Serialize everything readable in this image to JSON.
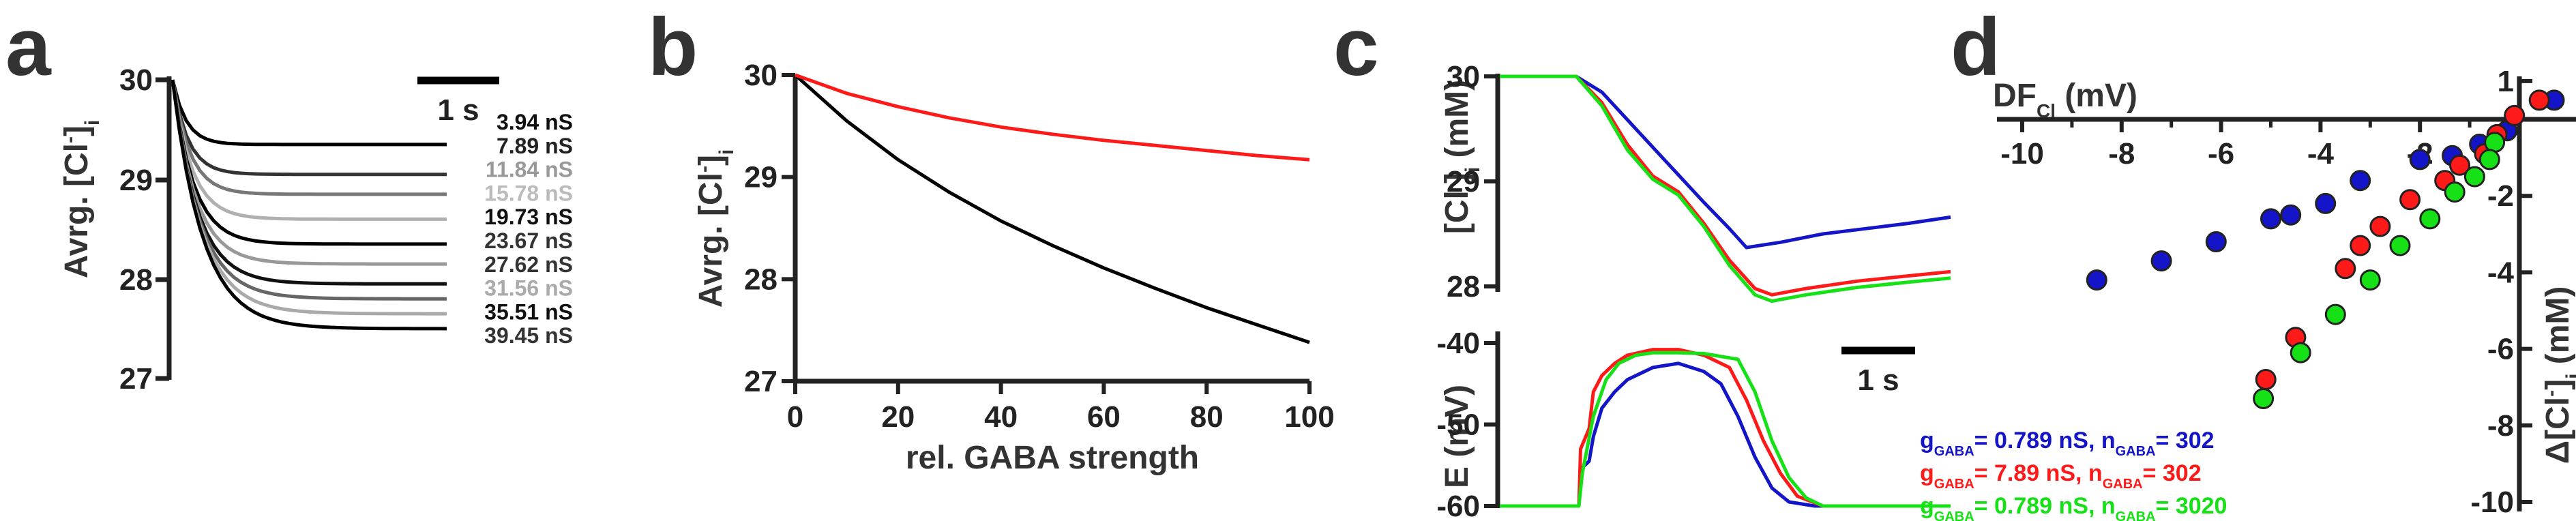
{
  "colors": {
    "blue": "#1414c8",
    "red": "#ff1a1a",
    "green": "#16e016",
    "black": "#000000",
    "dark": "#333333"
  },
  "panels": {
    "a": "a",
    "b": "b",
    "c": "c",
    "d": "d"
  },
  "chart_data": [
    {
      "panel": "a",
      "type": "line",
      "title": "",
      "xlabel": "",
      "ylabel": "Avrg. [Cl⁻]ᵢ",
      "ylabel_main": "Avrg. [Cl",
      "ylabel_sup": "-",
      "ylabel_close": "]",
      "ylabel_sub": "i",
      "ylim": [
        27,
        30
      ],
      "yticks": [
        "27",
        "28",
        "29",
        "30"
      ],
      "scalebar_label": "1 s",
      "time_s": [
        0,
        6.5
      ],
      "series": [
        {
          "name": "3.94 nS",
          "final": 29.35,
          "color": "#000000"
        },
        {
          "name": "7.89 nS",
          "final": 29.05,
          "color": "#333333"
        },
        {
          "name": "11.84 nS",
          "final": 28.85,
          "color": "#777777"
        },
        {
          "name": "15.78 nS",
          "final": 28.6,
          "color": "#b0b0b0"
        },
        {
          "name": "19.73 nS",
          "final": 28.35,
          "color": "#000000"
        },
        {
          "name": "23.67 nS",
          "final": 28.15,
          "color": "#999999"
        },
        {
          "name": "27.62 nS",
          "final": 27.95,
          "color": "#111111"
        },
        {
          "name": "31.56 nS",
          "final": 27.8,
          "color": "#666666"
        },
        {
          "name": "35.51 nS",
          "final": 27.65,
          "color": "#aaaaaa"
        },
        {
          "name": "39.45 nS",
          "final": 27.5,
          "color": "#000000"
        }
      ],
      "legend_colors": [
        "#111111",
        "#222222",
        "#999999",
        "#bbbbbb",
        "#111111",
        "#333333",
        "#333333",
        "#aaaaaa",
        "#111111",
        "#333333"
      ]
    },
    {
      "panel": "b",
      "type": "line",
      "title": "",
      "xlabel": "rel. GABA strength",
      "ylabel": "Avrg. [Cl⁻]ᵢ",
      "ylabel_main": "Avrg. [Cl",
      "ylabel_sup": "-",
      "ylabel_close": "]",
      "ylabel_sub": "i",
      "xlim": [
        0,
        100
      ],
      "ylim": [
        27,
        30
      ],
      "xticks": [
        "0",
        "20",
        "40",
        "60",
        "80",
        "100"
      ],
      "yticks": [
        "27",
        "28",
        "29",
        "30"
      ],
      "series": [
        {
          "name": "black",
          "color": "#000000",
          "x": [
            0,
            10,
            20,
            30,
            40,
            50,
            60,
            70,
            80,
            90,
            100
          ],
          "y": [
            30.0,
            29.55,
            29.17,
            28.85,
            28.57,
            28.33,
            28.11,
            27.91,
            27.72,
            27.55,
            27.38
          ]
        },
        {
          "name": "red",
          "color": "#ff1a1a",
          "x": [
            0,
            10,
            20,
            30,
            40,
            50,
            60,
            70,
            80,
            90,
            100
          ],
          "y": [
            30.0,
            29.82,
            29.69,
            29.58,
            29.49,
            29.42,
            29.36,
            29.31,
            29.26,
            29.21,
            29.17
          ]
        }
      ]
    },
    {
      "panel": "c-top",
      "type": "line",
      "title": "",
      "xlabel": "",
      "ylabel": "[Cl⁻]ᵢ (mM)",
      "ylabel_main": "[Cl",
      "ylabel_sup": "-",
      "ylabel_close": "]",
      "ylabel_sub": "i",
      "ylabel_unit": " (mM)",
      "xlim": [
        0,
        5.3
      ],
      "ylim": [
        28,
        30
      ],
      "yticks": [
        "28",
        "29",
        "30"
      ],
      "series": [
        {
          "name": "blue",
          "color": "#1414c8",
          "x": [
            0,
            0.9,
            1.2,
            1.6,
            2.0,
            2.4,
            2.7,
            2.9,
            3.3,
            3.8,
            4.3,
            4.8,
            5.3
          ],
          "y": [
            30.0,
            30.0,
            29.85,
            29.5,
            29.15,
            28.8,
            28.55,
            28.37,
            28.42,
            28.5,
            28.55,
            28.6,
            28.66
          ]
        },
        {
          "name": "red",
          "color": "#ff1a1a",
          "x": [
            0,
            0.9,
            1.2,
            1.5,
            1.8,
            2.1,
            2.4,
            2.7,
            3.0,
            3.2,
            3.6,
            4.2,
            4.8,
            5.3
          ],
          "y": [
            30.0,
            30.0,
            29.75,
            29.35,
            29.05,
            28.9,
            28.6,
            28.25,
            27.98,
            27.92,
            27.98,
            28.05,
            28.1,
            28.14
          ]
        },
        {
          "name": "green",
          "color": "#16e016",
          "x": [
            0,
            0.9,
            1.2,
            1.5,
            1.8,
            2.1,
            2.4,
            2.7,
            3.0,
            3.2,
            3.6,
            4.2,
            4.8,
            5.3
          ],
          "y": [
            30.0,
            30.0,
            29.72,
            29.3,
            29.02,
            28.87,
            28.57,
            28.2,
            27.92,
            27.86,
            27.92,
            27.99,
            28.04,
            28.08
          ]
        }
      ]
    },
    {
      "panel": "c-bottom",
      "type": "line",
      "title": "",
      "xlabel": "",
      "ylabel": "E (mV)",
      "xlim": [
        0,
        5.3
      ],
      "ylim": [
        -60,
        -40
      ],
      "yticks": [
        "-60",
        "-50",
        "-40"
      ],
      "scalebar_label": "1 s",
      "series": [
        {
          "name": "blue",
          "color": "#1414c8",
          "x": [
            0,
            0.93,
            0.95,
            1.05,
            1.1,
            1.2,
            1.35,
            1.5,
            1.8,
            2.1,
            2.4,
            2.6,
            2.8,
            3.0,
            3.2,
            3.4,
            3.7,
            5.3
          ],
          "y": [
            -60,
            -60,
            -55.5,
            -54.5,
            -51.5,
            -48,
            -46,
            -44.5,
            -43,
            -42.5,
            -43.5,
            -45,
            -49,
            -54,
            -57.8,
            -59.5,
            -60,
            -60
          ]
        },
        {
          "name": "red",
          "color": "#ff1a1a",
          "x": [
            0,
            0.93,
            0.95,
            1.05,
            1.1,
            1.2,
            1.35,
            1.5,
            1.8,
            2.1,
            2.4,
            2.7,
            2.9,
            3.1,
            3.3,
            3.5,
            3.8,
            5.3
          ],
          "y": [
            -60,
            -60,
            -53,
            -50.5,
            -46,
            -44,
            -42.5,
            -41.5,
            -40.8,
            -40.8,
            -41.5,
            -43,
            -47,
            -52,
            -56,
            -58.8,
            -60,
            -60
          ]
        },
        {
          "name": "green",
          "color": "#16e016",
          "x": [
            0,
            0.93,
            0.97,
            1.1,
            1.25,
            1.4,
            1.6,
            1.8,
            2.1,
            2.4,
            2.8,
            3.0,
            3.2,
            3.4,
            3.6,
            3.8,
            5.3
          ],
          "y": [
            -60,
            -60,
            -56,
            -49,
            -44.5,
            -42.5,
            -41.5,
            -41.2,
            -41.2,
            -41.3,
            -42,
            -46,
            -52,
            -56.5,
            -59,
            -60,
            -60
          ]
        }
      ]
    },
    {
      "panel": "d",
      "type": "scatter",
      "title": "",
      "xlabel_main": "DF",
      "xlabel_sub": "Cl",
      "xlabel_unit": " (mV)",
      "ylabel": "Δ[Cl⁻]ᵢ (mM)",
      "ylabel_pre": "Δ[Cl",
      "ylabel_sup": "-",
      "ylabel_close": "]",
      "ylabel_sub": "i",
      "ylabel_unit": " (mM)",
      "xlim": [
        -10,
        1
      ],
      "ylim": [
        -10,
        1
      ],
      "xticks": [
        "-10",
        "-8",
        "-6",
        "-4",
        "-2",
        "0"
      ],
      "yticks": [
        "1",
        "-2",
        "-4",
        "-6",
        "-8",
        "-10"
      ],
      "series": [
        {
          "name": "blue",
          "color": "#1414c8",
          "x": [
            0.7,
            -0.25,
            -0.8,
            -1.35,
            -2.0,
            -3.2,
            -3.9,
            -4.6,
            -5.0,
            -6.1,
            -7.2,
            -8.5
          ],
          "y": [
            0.5,
            -0.3,
            -0.65,
            -0.95,
            -1.05,
            -1.6,
            -2.2,
            -2.5,
            -2.6,
            -3.2,
            -3.7,
            -4.2
          ]
        },
        {
          "name": "red",
          "color": "#ff1a1a",
          "x": [
            0.4,
            -0.1,
            -0.45,
            -0.7,
            -1.2,
            -1.5,
            -2.2,
            -2.8,
            -3.2,
            -3.5,
            -4.5,
            -5.1
          ],
          "y": [
            0.5,
            0.1,
            -0.4,
            -0.9,
            -1.2,
            -1.6,
            -2.1,
            -2.8,
            -3.3,
            -3.9,
            -5.7,
            -6.8
          ]
        },
        {
          "name": "green",
          "color": "#16e016",
          "x": [
            -0.5,
            -0.6,
            -0.9,
            -1.3,
            -1.8,
            -2.4,
            -3.0,
            -3.7,
            -4.4,
            -5.15
          ],
          "y": [
            -0.6,
            -1.05,
            -1.5,
            -1.9,
            -2.6,
            -3.3,
            -4.2,
            -5.1,
            -6.1,
            -7.3
          ]
        }
      ],
      "legend": [
        {
          "g_label": "g",
          "g_sub": "GABA",
          "g_value": "= 0.789 nS, n",
          "n_sub": "GABA",
          "n_value": "=   302",
          "color": "#1414c8"
        },
        {
          "g_label": "g",
          "g_sub": "GABA",
          "g_value": "=   7.89 nS, n",
          "n_sub": "GABA",
          "n_value": "=   302",
          "color": "#ff1a1a"
        },
        {
          "g_label": "g",
          "g_sub": "GABA",
          "g_value": "= 0.789 nS, n",
          "n_sub": "GABA",
          "n_value": "=  3020",
          "color": "#16e016"
        }
      ]
    }
  ]
}
